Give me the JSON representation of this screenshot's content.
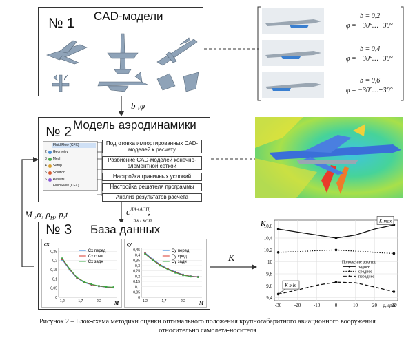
{
  "blocks": {
    "cad": {
      "number": "№ 1",
      "title": "CAD-модели"
    },
    "aero": {
      "number": "№ 2",
      "title": "Модель аэродинамики"
    },
    "db": {
      "number": "№ 3",
      "title": "База данных"
    }
  },
  "arrows": {
    "label_1_2": "b ,φ",
    "label_2_3_a": "c",
    "label_2_3_a_sup": "ЛА+АСП",
    "label_2_3_a_sub": "i",
    "label_2_3_b": "; m",
    "label_2_3_b_sup": "ЛА+АСП",
    "label_2_3_b_sub": "i",
    "feedback": "M ,α, ρ",
    "feedback_sub": "H",
    "feedback_tail": ", p,t",
    "k_label": "K"
  },
  "configs": [
    {
      "b": "b = 0,2",
      "phi": "φ = −30°…+30°"
    },
    {
      "b": "b = 0,4",
      "phi": "φ = −30°…+30°"
    },
    {
      "b": "b = 0,6",
      "phi": "φ = −30°…+30°"
    }
  ],
  "sim_tree": {
    "header": "Fluid Flow (CFX)",
    "items": [
      {
        "n": "2",
        "label": "Geometry"
      },
      {
        "n": "3",
        "label": "Mesh"
      },
      {
        "n": "4",
        "label": "Setup"
      },
      {
        "n": "5",
        "label": "Solution"
      },
      {
        "n": "6",
        "label": "Results"
      }
    ],
    "footer": "Fluid Flow (CFX)"
  },
  "aero_steps": [
    "Подготовка импортированных CAD-моделей к расчету",
    "Разбиение CAD-моделей конечно-элементной сеткой",
    "Настройка граничных условий",
    "Настройка решателя программы",
    "Анализ результатов расчета"
  ],
  "caption": [
    "Рисунок 2 – Блок-схема методики оценки оптимального положения крупногабаритного авиационного вооружения",
    "относительно самолета-носителя"
  ],
  "chart_data": [
    {
      "type": "line",
      "ylabel": "cx",
      "xlabel": "M",
      "x": [
        1.2,
        1.4,
        1.6,
        1.8,
        2.0,
        2.2,
        2.4,
        2.6
      ],
      "xticks": [
        "1,2",
        "1,7",
        "2,2"
      ],
      "yticks": [
        "0",
        "0,05",
        "0,1",
        "0,15",
        "0,2",
        "0,25"
      ],
      "ylim": [
        0,
        0.27
      ],
      "xlim": [
        1.1,
        2.7
      ],
      "series": [
        {
          "name": "Cx перед",
          "color": "#1f77d4",
          "values": [
            0.205,
            0.15,
            0.105,
            0.08,
            0.068,
            0.06,
            0.055,
            0.053
          ]
        },
        {
          "name": "Cx сред",
          "color": "#d83a2e",
          "values": [
            0.208,
            0.153,
            0.107,
            0.082,
            0.069,
            0.061,
            0.056,
            0.054
          ]
        },
        {
          "name": "Cx задн",
          "color": "#39a845",
          "values": [
            0.212,
            0.156,
            0.109,
            0.084,
            0.071,
            0.062,
            0.057,
            0.055
          ]
        }
      ]
    },
    {
      "type": "line",
      "ylabel": "cy",
      "xlabel": "M",
      "x": [
        1.2,
        1.4,
        1.6,
        1.8,
        2.0,
        2.2,
        2.4,
        2.6
      ],
      "xticks": [
        "1,2",
        "1,7",
        "2,2"
      ],
      "yticks": [
        "0",
        "0,05",
        "0,1",
        "0,15",
        "0,2",
        "0,25",
        "0,3",
        "0,35",
        "0,4",
        "0,45"
      ],
      "ylim": [
        0,
        0.47
      ],
      "xlim": [
        1.1,
        2.7
      ],
      "series": [
        {
          "name": "Cy перед",
          "color": "#1f77d4",
          "values": [
            0.42,
            0.36,
            0.31,
            0.27,
            0.24,
            0.215,
            0.2,
            0.195
          ]
        },
        {
          "name": "Cy сред",
          "color": "#d83a2e",
          "values": [
            0.415,
            0.355,
            0.305,
            0.266,
            0.236,
            0.212,
            0.198,
            0.193
          ]
        },
        {
          "name": "Cy задн",
          "color": "#39a845",
          "values": [
            0.41,
            0.35,
            0.3,
            0.262,
            0.232,
            0.209,
            0.196,
            0.191
          ]
        }
      ]
    },
    {
      "type": "line",
      "ylabel": "K",
      "xlabel": "φ, град",
      "x": [
        -30,
        -20,
        -10,
        0,
        10,
        20,
        30
      ],
      "xticks": [
        "-30",
        "-20",
        "-10",
        "0",
        "10",
        "20",
        "30"
      ],
      "yticks": [
        "9,4",
        "9,6",
        "9,8",
        "10",
        "10,2",
        "10,4",
        "10,6"
      ],
      "ylim": [
        9.35,
        10.7
      ],
      "xlim": [
        -32,
        32
      ],
      "legend_title": "Положение ракеты:",
      "annotations": [
        "K max",
        "K min"
      ],
      "series": [
        {
          "name": "заднее",
          "style": "solid",
          "values": [
            10.55,
            10.5,
            10.45,
            10.4,
            10.45,
            10.55,
            10.62
          ]
        },
        {
          "name": "среднее",
          "style": "dotted",
          "values": [
            10.16,
            10.17,
            10.19,
            10.2,
            10.18,
            10.16,
            10.14
          ]
        },
        {
          "name": "переднее",
          "style": "dashed",
          "values": [
            9.46,
            9.53,
            9.61,
            9.66,
            9.65,
            9.58,
            9.5
          ]
        }
      ]
    }
  ]
}
